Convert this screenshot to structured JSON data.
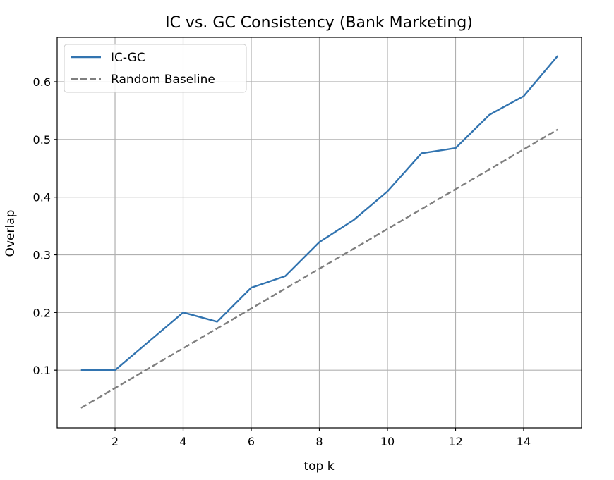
{
  "chart_data": {
    "type": "line",
    "title": "IC vs. GC Consistency (Bank Marketing)",
    "xlabel": "top k",
    "ylabel": "Overlap",
    "xlim": [
      0.3,
      15.7
    ],
    "ylim": [
      0.0,
      0.677
    ],
    "xticks": [
      2,
      4,
      6,
      8,
      10,
      12,
      14
    ],
    "yticks": [
      0.1,
      0.2,
      0.3,
      0.4,
      0.5,
      0.6
    ],
    "grid": true,
    "legend_position": "upper-left",
    "series": [
      {
        "name": "IC-GC",
        "style": "solid",
        "color": "#3274b0",
        "x": [
          1,
          2,
          3,
          4,
          5,
          6,
          7,
          8,
          9,
          10,
          11,
          12,
          13,
          14,
          15
        ],
        "y": [
          0.1,
          0.1,
          0.15,
          0.2,
          0.184,
          0.243,
          0.263,
          0.322,
          0.36,
          0.41,
          0.476,
          0.485,
          0.543,
          0.575,
          0.645
        ]
      },
      {
        "name": "Random Baseline",
        "style": "dashed",
        "color": "#7f7f7f",
        "x": [
          1,
          2,
          3,
          4,
          5,
          6,
          7,
          8,
          9,
          10,
          11,
          12,
          13,
          14,
          15
        ],
        "y": [
          0.0345,
          0.069,
          0.1034,
          0.1379,
          0.1724,
          0.2069,
          0.2414,
          0.2759,
          0.3103,
          0.3448,
          0.3793,
          0.4138,
          0.4483,
          0.4828,
          0.5172
        ]
      }
    ]
  }
}
